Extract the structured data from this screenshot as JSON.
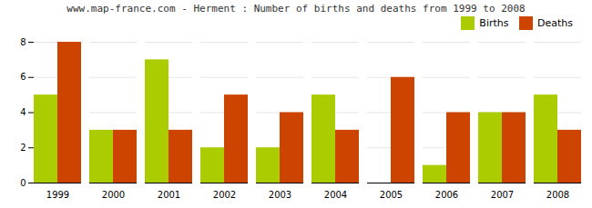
{
  "chart_data": {
    "type": "bar",
    "title": "www.map-france.com - Herment : Number of births and deaths from 1999 to 2008",
    "categories": [
      "1999",
      "2000",
      "2001",
      "2002",
      "2003",
      "2004",
      "2005",
      "2006",
      "2007",
      "2008"
    ],
    "series": [
      {
        "name": "Births",
        "color": "#aacc00",
        "values": [
          5,
          3,
          7,
          2,
          2,
          5,
          0,
          1,
          4,
          5
        ]
      },
      {
        "name": "Deaths",
        "color": "#cc4400",
        "values": [
          8,
          3,
          3,
          5,
          4,
          3,
          6,
          4,
          4,
          3
        ]
      }
    ],
    "ylim": [
      0,
      8
    ],
    "yticks": [
      0,
      2,
      4,
      6,
      8
    ],
    "grid": true,
    "legend": "upper right"
  }
}
